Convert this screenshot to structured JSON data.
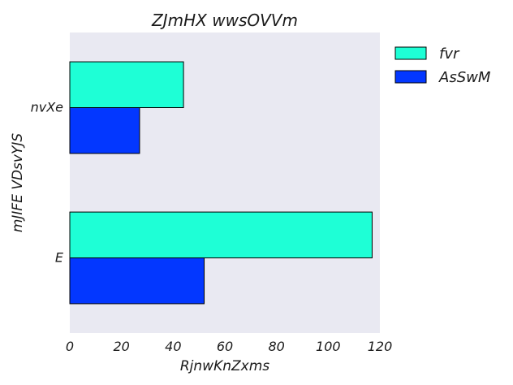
{
  "chart_data": {
    "type": "bar",
    "orientation": "horizontal",
    "title": "ZJmHX wwsOVVm",
    "xlabel": "RjnwKnZxms",
    "ylabel": "mJIFE VDsvYJS",
    "categories": [
      "nvXe",
      "E"
    ],
    "series": [
      {
        "name": "fvr",
        "values": [
          44,
          117
        ],
        "color": "#1effd6"
      },
      {
        "name": "AsSwM",
        "values": [
          27,
          52
        ],
        "color": "#0337ff"
      }
    ],
    "xlim": [
      0,
      120
    ],
    "xticks": [
      "0",
      "20",
      "40",
      "60",
      "80",
      "100",
      "120"
    ],
    "grid": false,
    "legend_position": "outside-top-right",
    "plot_background": "#e9e9f2"
  }
}
